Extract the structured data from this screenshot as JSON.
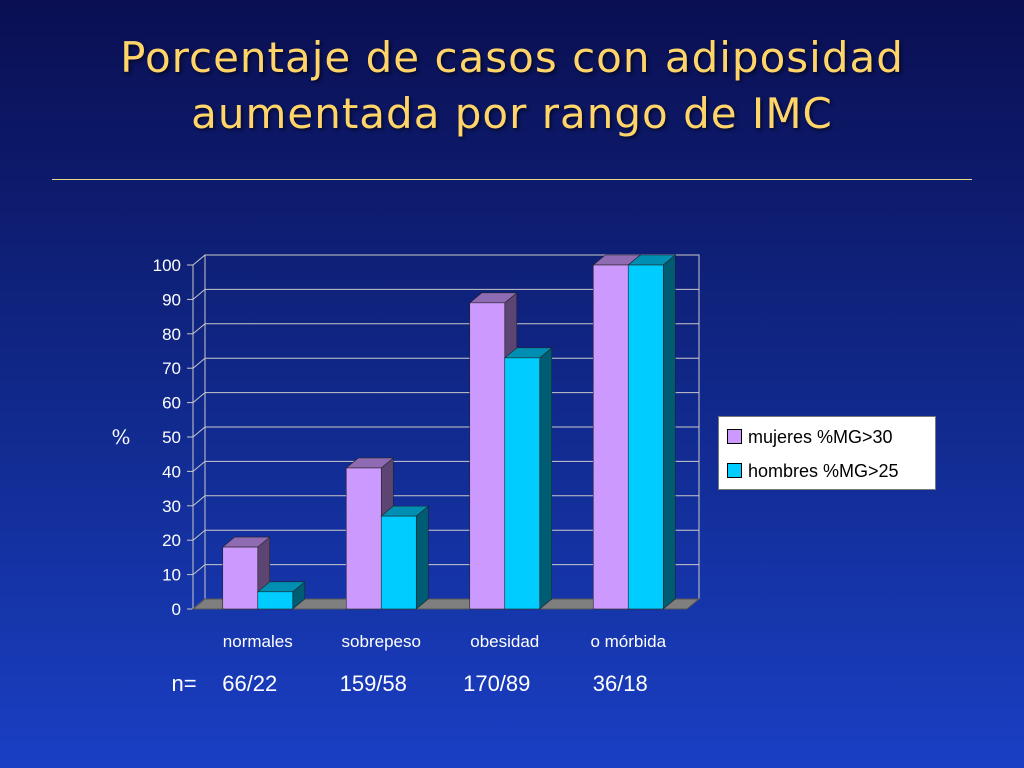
{
  "title": {
    "line1": "Porcentaje de casos con adiposidad",
    "line2": "aumentada por rango de IMC"
  },
  "chart_data": {
    "type": "bar",
    "categories": [
      "normales",
      "sobrepeso",
      "obesidad",
      "o mórbida"
    ],
    "series": [
      {
        "name": "mujeres %MG>30",
        "values": [
          18,
          41,
          89,
          100
        ],
        "color": "#cc99ff"
      },
      {
        "name": "hombres %MG>25",
        "values": [
          5,
          27,
          73,
          100
        ],
        "color": "#00ccff"
      }
    ],
    "ylabel": "%",
    "ylim": [
      0,
      100
    ],
    "yticks": [
      "0",
      "10",
      "20",
      "30",
      "40",
      "50",
      "60",
      "70",
      "80",
      "90",
      "100"
    ],
    "grid": true,
    "legend_position": "right",
    "n_prefix": "n=",
    "n_labels": [
      "66/22",
      "159/58",
      "170/89",
      "36/18"
    ]
  }
}
